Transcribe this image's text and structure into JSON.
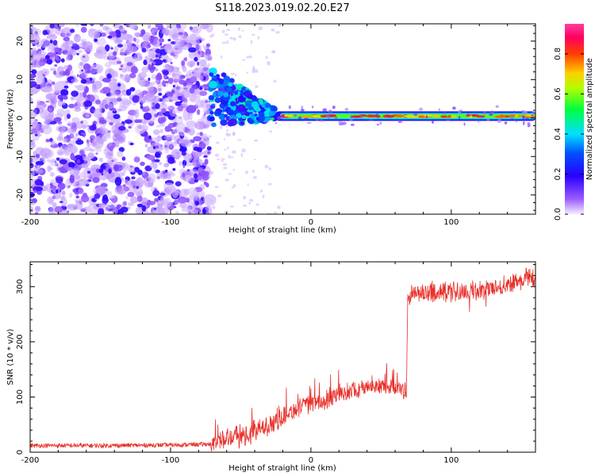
{
  "title": "S118.2023.019.02.20.E27",
  "colors": {
    "snr_line": "#e8302a",
    "noise": "#7a2ee6",
    "colormap": [
      "#e8e0ff",
      "#6a00ff",
      "#0000ff",
      "#00c8ff",
      "#00ff60",
      "#d8ff00",
      "#ff9000",
      "#ff0040",
      "#ff30a0"
    ]
  },
  "chart_data": [
    {
      "type": "heatmap",
      "xlabel": "Height of straight line (km)",
      "ylabel": "Frequency (Hz)",
      "xlim": [
        -200,
        160
      ],
      "ylim": [
        -25,
        24.5
      ],
      "x_ticks": [
        -200,
        -100,
        0,
        100
      ],
      "y_ticks": [
        -20,
        -10,
        0,
        10,
        20
      ],
      "regions": [
        {
          "name": "noise",
          "x": [
            -200,
            -72
          ],
          "y": [
            -25,
            24.5
          ],
          "amplitude": 0.15
        },
        {
          "name": "transition",
          "x": [
            -72,
            -25
          ],
          "y": [
            -3,
            11
          ],
          "amplitude": 0.3
        },
        {
          "name": "carrier",
          "x": [
            -25,
            160
          ],
          "y": [
            -0.5,
            1.5
          ],
          "amplitude": 0.85
        }
      ],
      "colorbar": {
        "label": "Normalized spectral amplitude",
        "range": [
          0.0,
          0.95
        ],
        "ticks": [
          "0.0",
          "0.2",
          "0.4",
          "0.6",
          "0.8"
        ]
      }
    },
    {
      "type": "line",
      "xlabel": "Height of straight line (km)",
      "ylabel": "SNR (10 * v/v)",
      "xlim": [
        -200,
        160
      ],
      "ylim": [
        0,
        345
      ],
      "x_ticks": [
        -200,
        -100,
        0,
        100
      ],
      "y_ticks": [
        0,
        100,
        200,
        300
      ],
      "series": [
        {
          "x": [
            -200,
            -150,
            -100,
            -80,
            -70,
            -60,
            -55,
            -50,
            -40,
            -30,
            -20,
            -10,
            0,
            10,
            20,
            30,
            40,
            50,
            60,
            68,
            69,
            70,
            80,
            100,
            120,
            140,
            160
          ],
          "y": [
            12,
            12,
            13,
            14,
            15,
            30,
            30,
            25,
            35,
            50,
            65,
            78,
            88,
            92,
            105,
            112,
            118,
            120,
            118,
            112,
            280,
            285,
            288,
            290,
            292,
            305,
            320
          ]
        }
      ]
    }
  ]
}
